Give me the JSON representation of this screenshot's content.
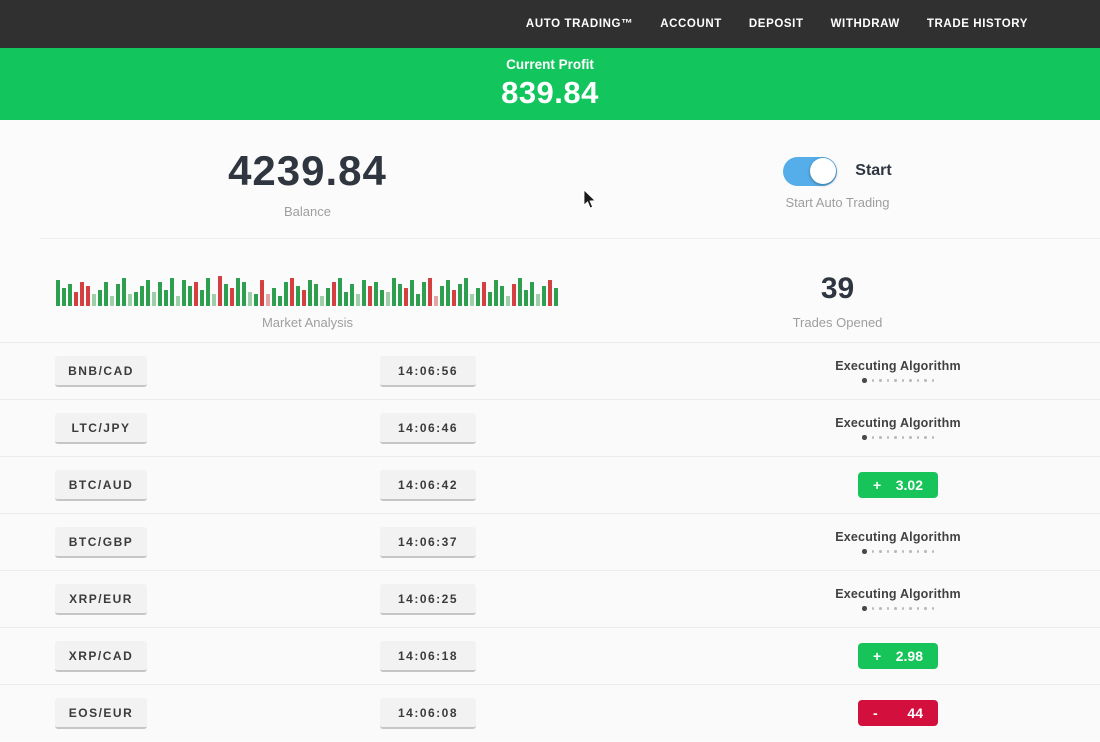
{
  "colors": {
    "nav_bg": "#303030",
    "banner_green": "#12c55d",
    "toggle_blue": "#55aee9",
    "profit_green": "#16c45a",
    "loss_red": "#d20f3d"
  },
  "nav": {
    "items": [
      {
        "label": "AUTO TRADING™"
      },
      {
        "label": "ACCOUNT"
      },
      {
        "label": "DEPOSIT"
      },
      {
        "label": "WITHDRAW"
      },
      {
        "label": "TRADE HISTORY"
      }
    ]
  },
  "banner": {
    "label": "Current Profit",
    "value": "839.84"
  },
  "summary": {
    "balance_value": "4239.84",
    "balance_label": "Balance",
    "toggle_label": "Start",
    "toggle_state": "on",
    "toggle_caption": "Start Auto Trading",
    "market_label": "Market Analysis",
    "trades_value": "39",
    "trades_label": "Trades Opened"
  },
  "chart_data": {
    "type": "bar",
    "title": "Market Analysis",
    "note": "decorative red/green market-activity bar strip; tokens are colorCode+heightPx",
    "palette": {
      "g": "#2e9e4f",
      "r": "#d43f3f",
      "lg": "#9fcfa8",
      "lr": "#e0a6a6"
    },
    "bars": [
      "g26",
      "g18",
      "g22",
      "r14",
      "r24",
      "r20",
      "lg12",
      "g16",
      "g24",
      "lg10",
      "g22",
      "g28",
      "lg12",
      "g14",
      "g20",
      "g26",
      "lg14",
      "g24",
      "g16",
      "g28",
      "lg10",
      "g26",
      "g20",
      "r24",
      "g16",
      "g28",
      "lg12",
      "r30",
      "g22",
      "r18",
      "g28",
      "g24",
      "lg14",
      "g12",
      "r26",
      "lr12",
      "g18",
      "g10",
      "g24",
      "r28",
      "g20",
      "r16",
      "g26",
      "g22",
      "lg10",
      "g18",
      "r24",
      "g28",
      "g14",
      "g22",
      "lg12",
      "g26",
      "r20",
      "g24",
      "g16",
      "lg14",
      "g28",
      "g22",
      "r18",
      "g26",
      "g12",
      "g24",
      "r28",
      "lr10",
      "g20",
      "g26",
      "r16",
      "g22",
      "g28",
      "lg12",
      "g18",
      "r24",
      "g14",
      "g26",
      "g20",
      "lg10",
      "r22",
      "g28",
      "g16",
      "g24",
      "lg12",
      "g20",
      "r26",
      "g18"
    ]
  },
  "trades": {
    "executing_label": "Executing Algorithm",
    "rows": [
      {
        "pair": "BNB/CAD",
        "time": "14:06:56",
        "status": "executing"
      },
      {
        "pair": "LTC/JPY",
        "time": "14:06:46",
        "status": "executing"
      },
      {
        "pair": "BTC/AUD",
        "time": "14:06:42",
        "status": "profit",
        "sign": "+",
        "value": "3.02"
      },
      {
        "pair": "BTC/GBP",
        "time": "14:06:37",
        "status": "executing"
      },
      {
        "pair": "XRP/EUR",
        "time": "14:06:25",
        "status": "executing"
      },
      {
        "pair": "XRP/CAD",
        "time": "14:06:18",
        "status": "profit",
        "sign": "+",
        "value": "2.98"
      },
      {
        "pair": "EOS/EUR",
        "time": "14:06:08",
        "status": "loss",
        "sign": "-",
        "value": "44"
      }
    ]
  }
}
